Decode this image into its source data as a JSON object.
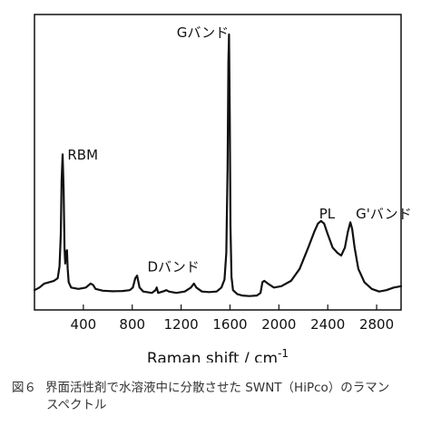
{
  "chart_data": {
    "type": "line",
    "title": "",
    "xlabel": "Raman shift / cm",
    "xlabel_superscript": "-1",
    "ylabel": "",
    "xlim": [
      0,
      3000
    ],
    "ylim": [
      0,
      1
    ],
    "xticks": [
      400,
      800,
      1200,
      1600,
      2000,
      2400,
      2800
    ],
    "grid": false,
    "legend": "none",
    "line_color": "#111111",
    "annotations": [
      {
        "label": "RBM",
        "x": 270,
        "y": 0.53
      },
      {
        "label": "Gバンド",
        "x": 1590,
        "y": 0.99
      },
      {
        "label": "Dバンド",
        "x": 1350,
        "y": 0.11
      },
      {
        "label": "PL",
        "x": 2330,
        "y": 0.31
      },
      {
        "label": "G'バンド",
        "x": 2630,
        "y": 0.31
      }
    ],
    "series": [
      {
        "values": [
          [
            0,
            0.04
          ],
          [
            40,
            0.05
          ],
          [
            80,
            0.065
          ],
          [
            120,
            0.07
          ],
          [
            160,
            0.075
          ],
          [
            190,
            0.085
          ],
          [
            205,
            0.13
          ],
          [
            215,
            0.25
          ],
          [
            222,
            0.45
          ],
          [
            230,
            0.55
          ],
          [
            238,
            0.42
          ],
          [
            246,
            0.2
          ],
          [
            252,
            0.14
          ],
          [
            258,
            0.18
          ],
          [
            266,
            0.19
          ],
          [
            272,
            0.12
          ],
          [
            280,
            0.07
          ],
          [
            300,
            0.05
          ],
          [
            360,
            0.045
          ],
          [
            420,
            0.05
          ],
          [
            460,
            0.065
          ],
          [
            480,
            0.06
          ],
          [
            500,
            0.045
          ],
          [
            560,
            0.038
          ],
          [
            640,
            0.036
          ],
          [
            720,
            0.037
          ],
          [
            780,
            0.04
          ],
          [
            805,
            0.05
          ],
          [
            825,
            0.085
          ],
          [
            840,
            0.095
          ],
          [
            860,
            0.05
          ],
          [
            890,
            0.035
          ],
          [
            960,
            0.03
          ],
          [
            990,
            0.04
          ],
          [
            1000,
            0.05
          ],
          [
            1012,
            0.03
          ],
          [
            1050,
            0.035
          ],
          [
            1080,
            0.04
          ],
          [
            1100,
            0.035
          ],
          [
            1160,
            0.03
          ],
          [
            1230,
            0.035
          ],
          [
            1280,
            0.05
          ],
          [
            1305,
            0.065
          ],
          [
            1325,
            0.05
          ],
          [
            1370,
            0.035
          ],
          [
            1430,
            0.033
          ],
          [
            1490,
            0.035
          ],
          [
            1530,
            0.05
          ],
          [
            1555,
            0.08
          ],
          [
            1570,
            0.18
          ],
          [
            1580,
            0.5
          ],
          [
            1587,
            0.9
          ],
          [
            1592,
            1.0
          ],
          [
            1598,
            0.7
          ],
          [
            1604,
            0.28
          ],
          [
            1612,
            0.09
          ],
          [
            1625,
            0.04
          ],
          [
            1660,
            0.025
          ],
          [
            1700,
            0.02
          ],
          [
            1760,
            0.018
          ],
          [
            1820,
            0.02
          ],
          [
            1850,
            0.03
          ],
          [
            1865,
            0.07
          ],
          [
            1880,
            0.075
          ],
          [
            1910,
            0.065
          ],
          [
            1960,
            0.05
          ],
          [
            2020,
            0.055
          ],
          [
            2100,
            0.075
          ],
          [
            2170,
            0.12
          ],
          [
            2240,
            0.2
          ],
          [
            2290,
            0.26
          ],
          [
            2320,
            0.29
          ],
          [
            2345,
            0.3
          ],
          [
            2370,
            0.29
          ],
          [
            2400,
            0.25
          ],
          [
            2440,
            0.2
          ],
          [
            2480,
            0.18
          ],
          [
            2510,
            0.17
          ],
          [
            2540,
            0.2
          ],
          [
            2565,
            0.26
          ],
          [
            2585,
            0.295
          ],
          [
            2600,
            0.27
          ],
          [
            2620,
            0.2
          ],
          [
            2650,
            0.12
          ],
          [
            2700,
            0.07
          ],
          [
            2760,
            0.045
          ],
          [
            2820,
            0.035
          ],
          [
            2880,
            0.04
          ],
          [
            2940,
            0.05
          ],
          [
            3000,
            0.055
          ]
        ]
      }
    ]
  },
  "caption": {
    "number": "図６",
    "text": "界面活性剤で水溶液中に分散させた SWNT（HiPco）のラマン",
    "text_line2": "スペクトル"
  }
}
